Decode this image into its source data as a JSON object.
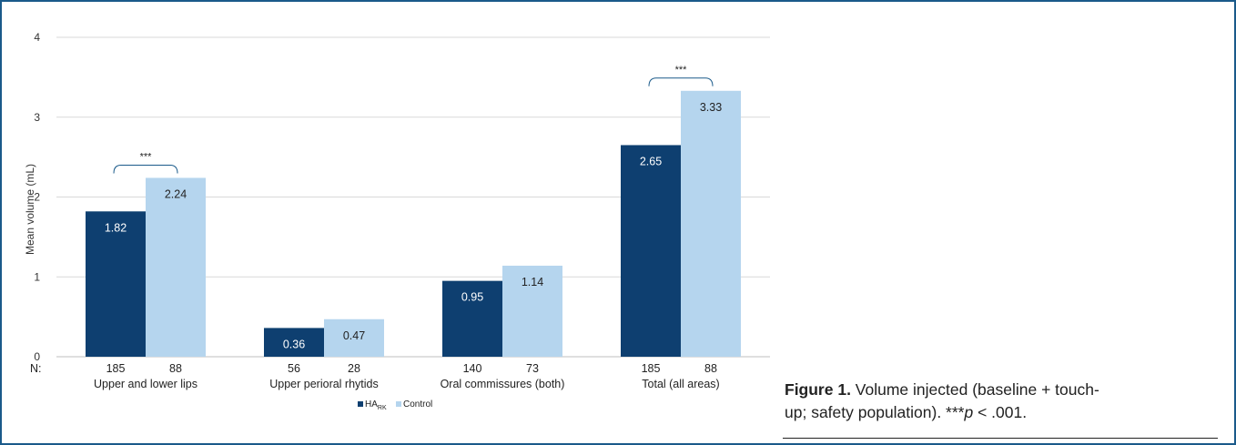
{
  "chart_data": {
    "type": "bar",
    "categories": [
      "Upper and lower lips",
      "Upper perioral rhytids",
      "Oral commissures (both)",
      "Total (all areas)"
    ],
    "series": [
      {
        "name": "HA",
        "name_subscript": "RK",
        "color": "#0e3f70",
        "values": [
          1.82,
          0.36,
          0.95,
          2.65
        ],
        "value_labels": [
          "1.82",
          "0.36",
          "0.95",
          "2.65"
        ],
        "n": [
          "185",
          "56",
          "140",
          "185"
        ]
      },
      {
        "name": "Control",
        "color": "#b5d5ee",
        "values": [
          2.24,
          0.47,
          1.14,
          3.33
        ],
        "value_labels": [
          "2.24",
          "0.47",
          "1.14",
          "3.33"
        ],
        "n": [
          "88",
          "28",
          "73",
          "88"
        ]
      }
    ],
    "ylabel": "Mean volume (mL)",
    "ylim": [
      0,
      4
    ],
    "yticks": [
      "0",
      "1",
      "2",
      "3",
      "4"
    ],
    "n_prefix": "N:",
    "significance": [
      {
        "category_index": 0,
        "label": "***"
      },
      {
        "category_index": 3,
        "label": "***"
      }
    ],
    "grid": true,
    "legend_position": "bottom-center"
  },
  "caption": {
    "figure_label": "Figure 1.",
    "text_line1": " Volume injected (baseline + touch-",
    "text_line2": "up; safety population). ***",
    "p_symbol": "p",
    "p_tail": " < .001."
  }
}
